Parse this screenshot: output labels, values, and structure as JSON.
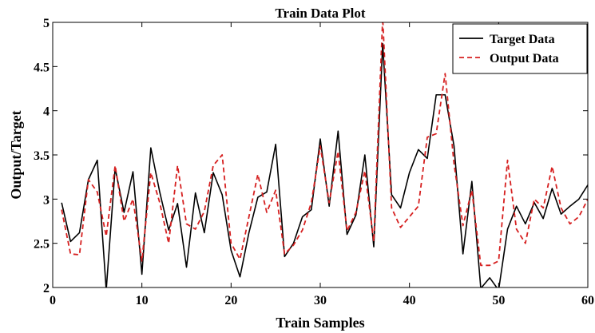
{
  "chart_data": {
    "type": "line",
    "title": "Train Data Plot",
    "xlabel": "Train Samples",
    "ylabel": "Output/Target",
    "xlim": [
      0,
      60
    ],
    "ylim": [
      2,
      5
    ],
    "xticks": [
      0,
      10,
      20,
      30,
      40,
      50,
      60
    ],
    "yticks": [
      2,
      2.5,
      3,
      3.5,
      4,
      4.5,
      5
    ],
    "xtick_labels": [
      "0",
      "10",
      "20",
      "30",
      "40",
      "50",
      "60"
    ],
    "ytick_labels": [
      "2",
      "2.5",
      "3",
      "3.5",
      "4",
      "4.5",
      "5"
    ],
    "grid": false,
    "legend_position": "top-right",
    "x": [
      1,
      2,
      3,
      4,
      5,
      6,
      7,
      8,
      9,
      10,
      11,
      12,
      13,
      14,
      15,
      16,
      17,
      18,
      19,
      20,
      21,
      22,
      23,
      24,
      25,
      26,
      27,
      28,
      29,
      30,
      31,
      32,
      33,
      34,
      35,
      36,
      37,
      38,
      39,
      40,
      41,
      42,
      43,
      44,
      45,
      46,
      47,
      48,
      49,
      50,
      51,
      52,
      53,
      54,
      55,
      56,
      57,
      58,
      59,
      60
    ],
    "series": [
      {
        "name": "Target Data",
        "color": "#000000",
        "style": "solid",
        "values": [
          2.96,
          2.52,
          2.62,
          3.22,
          3.44,
          1.97,
          3.35,
          2.85,
          3.31,
          2.15,
          3.58,
          3.08,
          2.65,
          2.95,
          2.23,
          3.07,
          2.62,
          3.3,
          3.05,
          2.42,
          2.12,
          2.62,
          3.02,
          3.08,
          3.62,
          2.35,
          2.5,
          2.8,
          2.88,
          3.68,
          2.92,
          3.77,
          2.6,
          2.82,
          3.5,
          2.46,
          4.76,
          3.05,
          2.9,
          3.3,
          3.56,
          3.46,
          4.18,
          4.18,
          3.6,
          2.38,
          3.2,
          1.99,
          2.11,
          1.97,
          2.66,
          2.92,
          2.72,
          2.96,
          2.78,
          3.12,
          2.83,
          2.92,
          3.0,
          3.16
        ]
      },
      {
        "name": "Output Data",
        "color": "#d62020",
        "style": "dashed",
        "values": [
          2.88,
          2.38,
          2.37,
          3.22,
          3.08,
          2.58,
          3.38,
          2.75,
          3.0,
          2.3,
          3.3,
          2.96,
          2.5,
          3.38,
          2.72,
          2.66,
          2.86,
          3.38,
          3.5,
          2.5,
          2.32,
          2.8,
          3.28,
          2.85,
          3.1,
          2.38,
          2.48,
          2.65,
          2.96,
          3.6,
          2.96,
          3.54,
          2.64,
          2.85,
          3.32,
          2.52,
          5.05,
          2.9,
          2.68,
          2.8,
          2.92,
          3.7,
          3.74,
          4.42,
          3.4,
          2.7,
          3.1,
          2.25,
          2.25,
          2.3,
          3.44,
          2.66,
          2.5,
          3.0,
          2.9,
          3.37,
          2.9,
          2.72,
          2.8,
          3.0
        ]
      }
    ]
  }
}
